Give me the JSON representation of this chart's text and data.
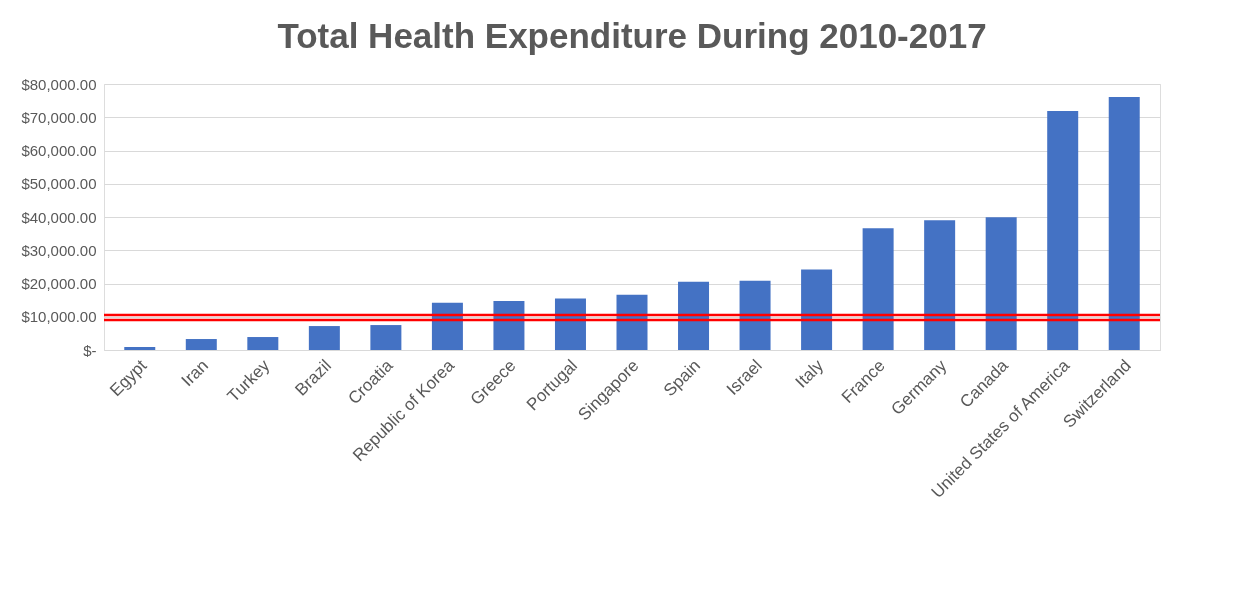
{
  "chart_data": {
    "type": "bar",
    "title": "Total Health Expenditure During 2010-2017",
    "categories": [
      "Egypt",
      "Iran",
      "Turkey",
      "Brazil",
      "Croatia",
      "Republic of Korea",
      "Greece",
      "Portugal",
      "Singapore",
      "Spain",
      "Israel",
      "Italy",
      "France",
      "Germany",
      "Canada",
      "United States of America",
      "Switzerland"
    ],
    "series": [
      {
        "color": "#4472c4",
        "values": [
          900,
          3300,
          3900,
          7200,
          7500,
          14200,
          14700,
          15500,
          16600,
          20500,
          20800,
          24200,
          36600,
          39000,
          39900,
          71900,
          76100
        ]
      }
    ],
    "ylim": [
      0,
      80000
    ],
    "yticks": [
      {
        "value": 0,
        "label": "$-"
      },
      {
        "value": 10000,
        "label": "$10,000.00"
      },
      {
        "value": 20000,
        "label": "$20,000.00"
      },
      {
        "value": 30000,
        "label": "$30,000.00"
      },
      {
        "value": 40000,
        "label": "$40,000.00"
      },
      {
        "value": 50000,
        "label": "$50,000.00"
      },
      {
        "value": 60000,
        "label": "$60,000.00"
      },
      {
        "value": 70000,
        "label": "$70,000.00"
      },
      {
        "value": 80000,
        "label": "$80,000.00"
      }
    ],
    "ref_lines": [
      {
        "axis": "y",
        "value": 10500,
        "color": "#ff0000"
      },
      {
        "axis": "y",
        "value": 9000,
        "color": "#ff0000"
      }
    ],
    "grid": "y"
  }
}
